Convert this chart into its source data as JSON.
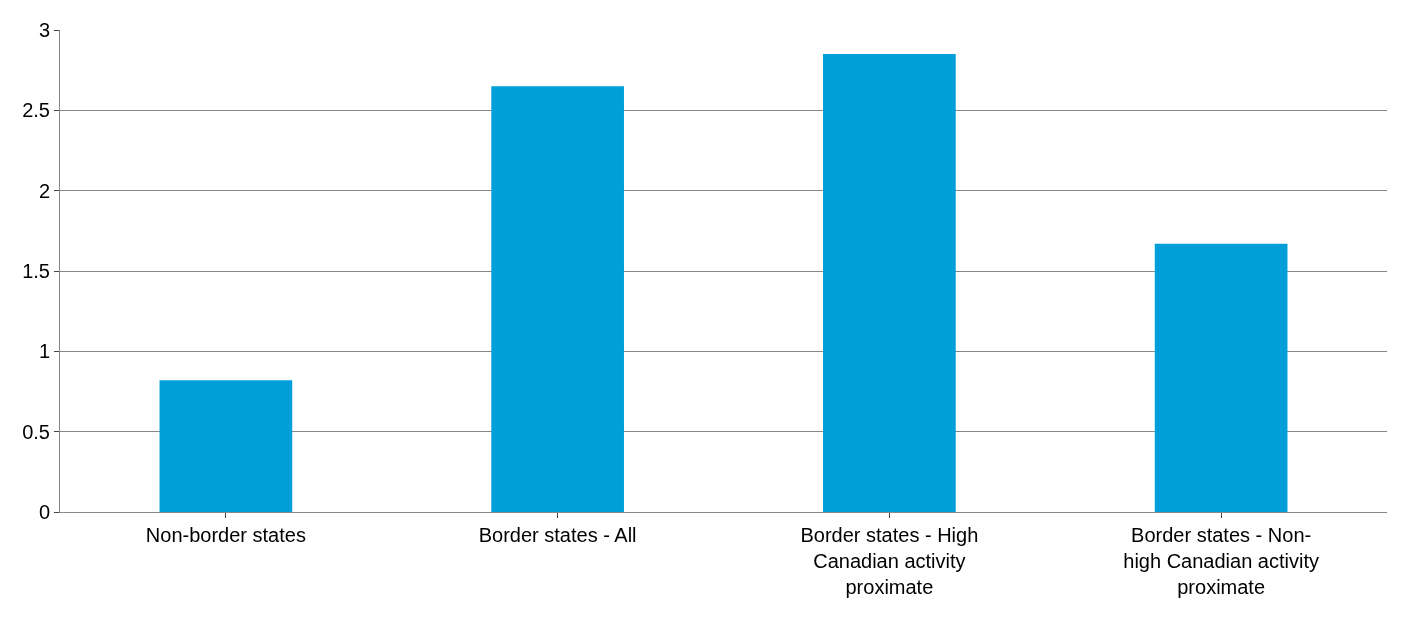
{
  "chart_data": {
    "type": "bar",
    "categories": [
      "Non-border states",
      "Border states - All",
      "Border states - High Canadian activity proximate",
      "Border states - Non-high Canadian activity proximate"
    ],
    "values": [
      0.82,
      2.65,
      2.85,
      1.67
    ],
    "color": "#009fd9",
    "ylim": [
      0,
      3
    ],
    "yticks": [
      0,
      0.5,
      1,
      1.5,
      2,
      2.5,
      3
    ],
    "grid": "y"
  }
}
